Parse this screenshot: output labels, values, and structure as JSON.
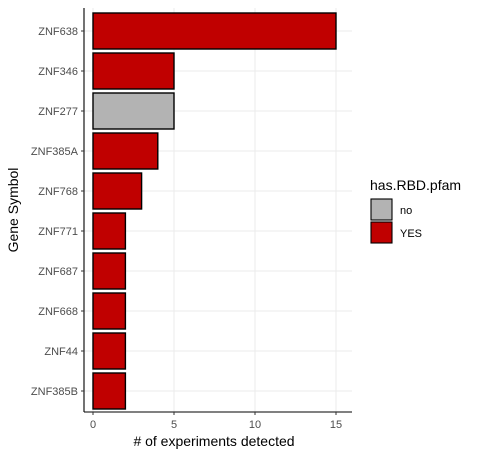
{
  "chart_data": {
    "type": "bar",
    "orientation": "horizontal",
    "categories": [
      "ZNF638",
      "ZNF346",
      "ZNF277",
      "ZNF385A",
      "ZNF768",
      "ZNF771",
      "ZNF687",
      "ZNF668",
      "ZNF44",
      "ZNF385B"
    ],
    "values": [
      15,
      5,
      5,
      4,
      3,
      2,
      2,
      2,
      2,
      2
    ],
    "groups": [
      "YES",
      "YES",
      "no",
      "YES",
      "YES",
      "YES",
      "YES",
      "YES",
      "YES",
      "YES"
    ],
    "xlabel": "# of experiments detected",
    "ylabel": "Gene Symbol",
    "xlim": [
      0,
      15
    ],
    "xticks": [
      0,
      5,
      10,
      15
    ],
    "grid": true,
    "legend": {
      "title": "has.RBD.pfam",
      "placement": "right",
      "entries": [
        {
          "label": "no",
          "color": "#b3b3b3"
        },
        {
          "label": "YES",
          "color": "#c00000"
        }
      ]
    },
    "colors": {
      "YES": "#c00000",
      "no": "#b3b3b3",
      "bar_outline": "#000000",
      "grid": "#ebebeb"
    }
  }
}
